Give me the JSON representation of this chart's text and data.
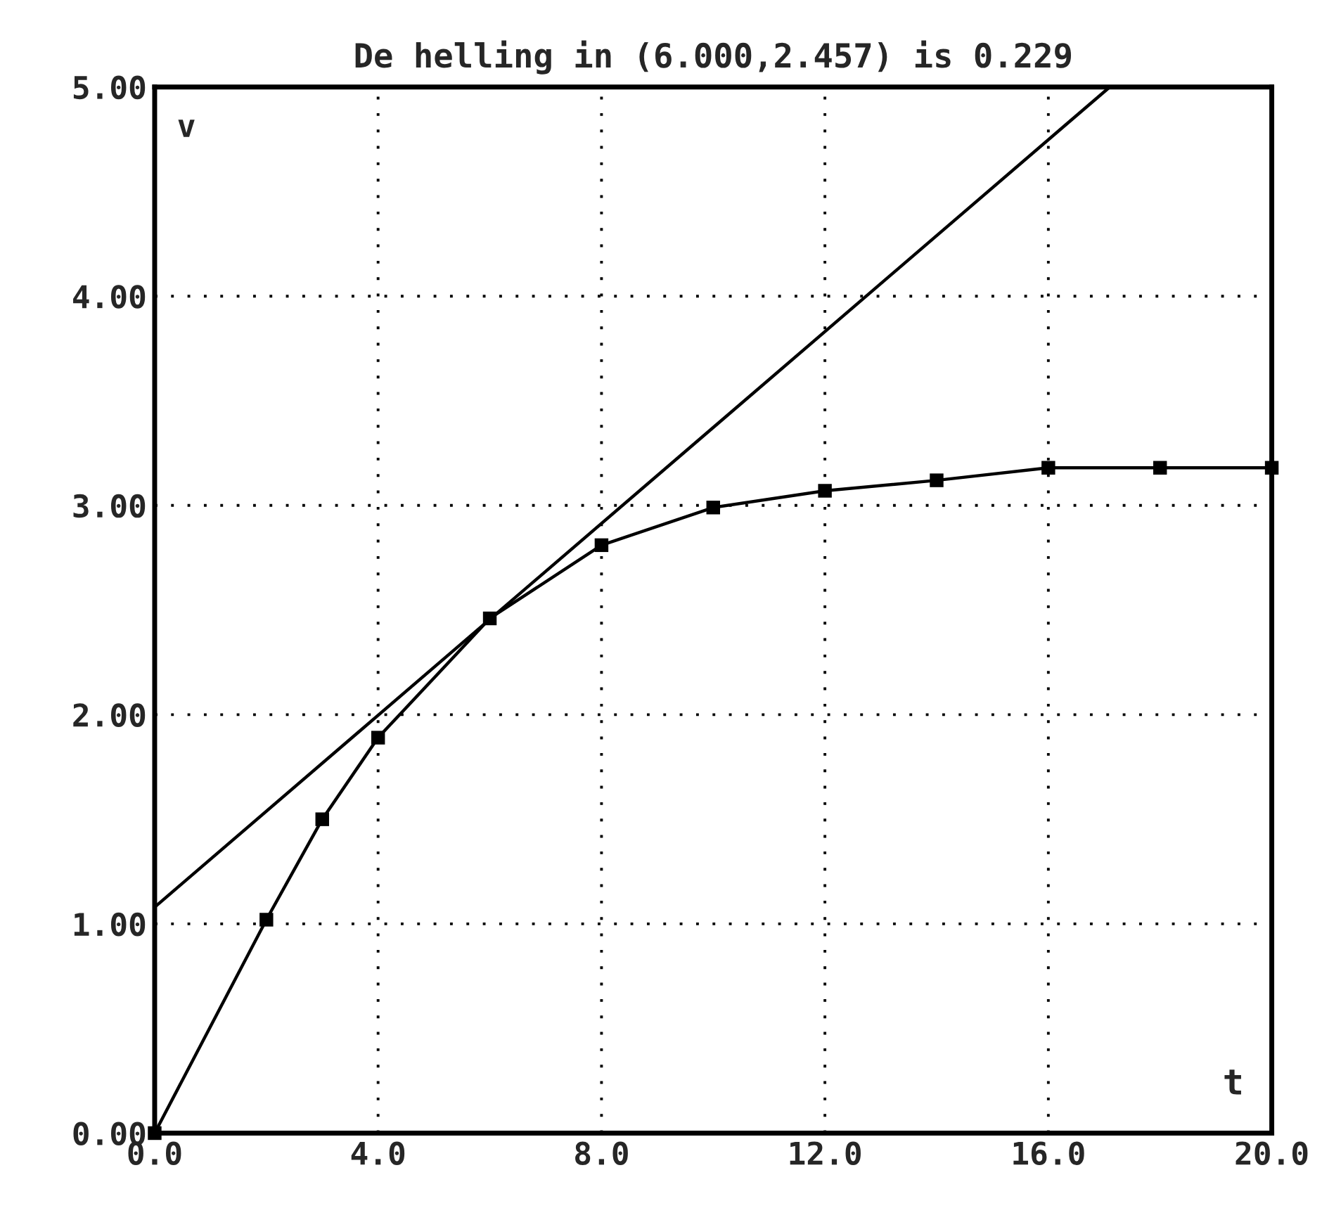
{
  "chart_data": {
    "type": "line",
    "title": "De helling in (6.000,2.457) is 0.229",
    "xlabel": "t",
    "ylabel": "v",
    "series": [
      {
        "color": "#000000",
        "marker": "square",
        "x": [
          0,
          2,
          3,
          4,
          6,
          8,
          10,
          12,
          14,
          16,
          18,
          20
        ],
        "values": [
          0,
          1.02,
          1.5,
          1.89,
          2.46,
          2.81,
          2.99,
          3.07,
          3.12,
          3.18,
          3.18,
          3.18
        ]
      },
      {
        "color": "#000000",
        "marker": "none",
        "x": [
          0,
          17.1
        ],
        "values": [
          1.08,
          5.0
        ]
      }
    ],
    "xlim": [
      0,
      20
    ],
    "ylim": [
      0,
      5
    ],
    "xticks": [
      {
        "value": 0,
        "label": "0.0"
      },
      {
        "value": 4,
        "label": "4.0"
      },
      {
        "value": 8,
        "label": "8.0"
      },
      {
        "value": 12,
        "label": "12.0"
      },
      {
        "value": 16,
        "label": "16.0"
      },
      {
        "value": 20,
        "label": "20.0"
      }
    ],
    "yticks": [
      {
        "value": 0,
        "label": "0.00"
      },
      {
        "value": 1,
        "label": "1.00"
      },
      {
        "value": 2,
        "label": "2.00"
      },
      {
        "value": 3,
        "label": "3.00"
      },
      {
        "value": 4,
        "label": "4.00"
      },
      {
        "value": 5,
        "label": "5.00"
      }
    ],
    "grid": true,
    "line_style": "solid",
    "legend": false
  }
}
